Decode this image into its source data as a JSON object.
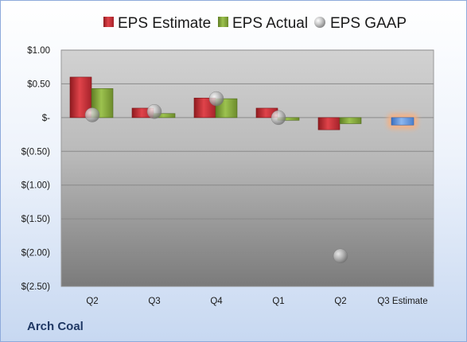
{
  "company": "Arch Coal",
  "chart_data": {
    "type": "bar",
    "title": "",
    "xlabel": "",
    "ylabel": "",
    "categories": [
      "Q2",
      "Q3",
      "Q4",
      "Q1",
      "Q2",
      "Q3 Estimate"
    ],
    "ylim": [
      -2.5,
      1.0
    ],
    "yticks": [
      1.0,
      0.5,
      0.0,
      -0.5,
      -1.0,
      -1.5,
      -2.0,
      -2.5
    ],
    "ytick_labels": [
      "$1.00",
      "$0.50",
      "$-",
      "$(0.50)",
      "$(1.00)",
      "$(1.50)",
      "$(2.00)",
      "$(2.50)"
    ],
    "grid": true,
    "legend_position": "top",
    "series": [
      {
        "name": "EPS Estimate",
        "kind": "bar",
        "color": "#c0282d",
        "values": [
          0.6,
          0.14,
          0.29,
          0.14,
          -0.18,
          null
        ]
      },
      {
        "name": "EPS Actual",
        "kind": "bar",
        "color": "#7fa23a",
        "values": [
          0.43,
          0.06,
          0.28,
          -0.04,
          -0.09,
          null
        ]
      },
      {
        "name": "EPS GAAP",
        "kind": "marker",
        "color": "#a9a9a9",
        "values": [
          0.04,
          0.09,
          0.28,
          0.0,
          -2.05,
          null
        ]
      },
      {
        "name": "Q3 Estimate",
        "kind": "bar",
        "color": "#5b8fd6",
        "highlight": "#f4b183",
        "values": [
          null,
          null,
          null,
          null,
          null,
          -0.11
        ],
        "show_in_legend": false
      }
    ]
  }
}
